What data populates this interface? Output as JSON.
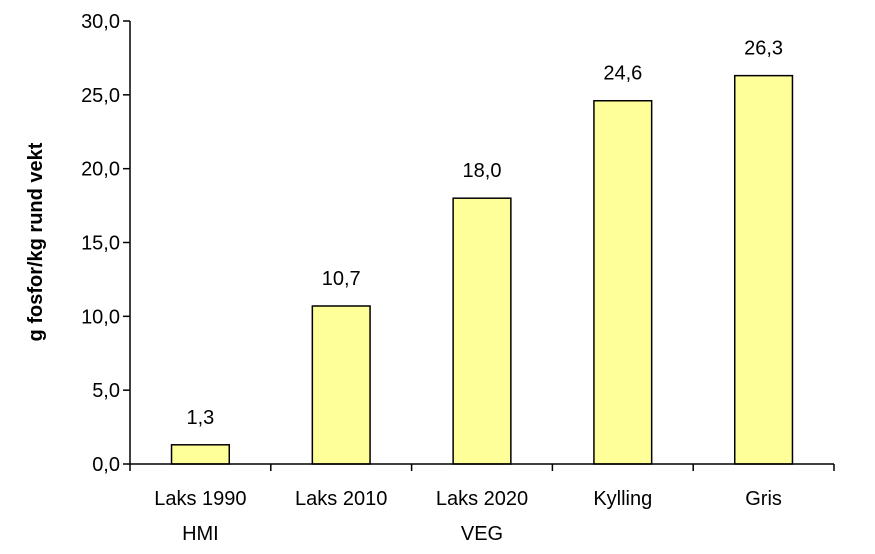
{
  "chart_data": {
    "type": "bar",
    "categories": [
      [
        "Laks 1990",
        "HMI"
      ],
      [
        "Laks 2010"
      ],
      [
        "Laks 2020",
        "VEG"
      ],
      [
        "Kylling"
      ],
      [
        "Gris"
      ]
    ],
    "values": [
      1.3,
      10.7,
      18.0,
      24.6,
      26.3
    ],
    "data_labels": [
      "1,3",
      "10,7",
      "18,0",
      "24,6",
      "26,3"
    ],
    "title": "",
    "xlabel": "",
    "ylabel": "g fosfor/kg rund vekt",
    "ylim": [
      0,
      30
    ],
    "yticks": [
      0,
      5,
      10,
      15,
      20,
      25,
      30
    ],
    "ytick_labels": [
      "0,0",
      "5,0",
      "10,0",
      "15,0",
      "20,0",
      "25,0",
      "30,0"
    ],
    "bar_color": "#ffff99",
    "bar_stroke": "#000000",
    "grid": false,
    "legend": "none"
  }
}
